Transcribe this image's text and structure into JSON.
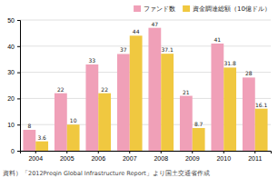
{
  "chart_data": {
    "type": "bar",
    "categories": [
      "2004",
      "2005",
      "2006",
      "2007",
      "2008",
      "2009",
      "2010",
      "2011"
    ],
    "series": [
      {
        "name": "ファンド数",
        "color": "#f0a0b8",
        "values": [
          8,
          22,
          33,
          37,
          47,
          21,
          41,
          28
        ]
      },
      {
        "name": "資金調達総額（10億ドル）",
        "color": "#f0c840",
        "values": [
          3.6,
          10,
          22,
          44,
          37.1,
          8.7,
          31.8,
          16.1
        ]
      }
    ],
    "ylim": [
      0,
      50
    ],
    "yticks": [
      0,
      10,
      20,
      30,
      40,
      50
    ],
    "grid": true,
    "legend": "upper right",
    "data_labels": true,
    "annotations": [
      "資料）「2012Preqin Global Infrastructure Report」より国土交通省作成"
    ]
  }
}
